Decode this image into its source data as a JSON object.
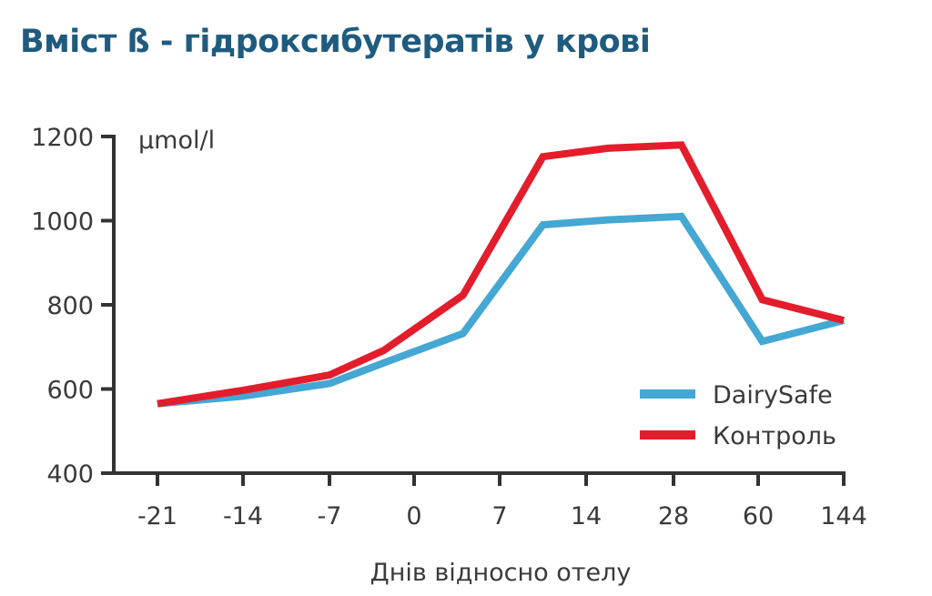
{
  "title": "Вміст ß - гідроксибутератів у крові",
  "chart_data": {
    "type": "line",
    "categories": [
      "-21",
      "-14",
      "-7",
      "0",
      "7",
      "14",
      "28",
      "60",
      "144"
    ],
    "xlabel": "Днів відносно отелу",
    "ylabel": "µmol/l",
    "ylim": [
      400,
      1200
    ],
    "yticks": [
      400,
      600,
      800,
      1000,
      1200
    ],
    "grid": false,
    "legend_position": "bottom-right",
    "series": [
      {
        "name": "DairySafe",
        "color": "#45a7d3",
        "points": [
          [
            -21,
            565
          ],
          [
            -14,
            583
          ],
          [
            -7,
            613
          ],
          [
            -2.5,
            662
          ],
          [
            4,
            732
          ],
          [
            10.5,
            990
          ],
          [
            17.5,
            1002
          ],
          [
            31,
            1010
          ],
          [
            64,
            713
          ],
          [
            144,
            763
          ]
        ]
      },
      {
        "name": "Контроль",
        "color": "#e31d2b",
        "points": [
          [
            -21,
            565
          ],
          [
            -14,
            597
          ],
          [
            -7,
            633
          ],
          [
            -2.5,
            692
          ],
          [
            4,
            823
          ],
          [
            10.5,
            1152
          ],
          [
            17.5,
            1172
          ],
          [
            31,
            1180
          ],
          [
            64,
            812
          ],
          [
            144,
            763
          ]
        ]
      }
    ]
  }
}
